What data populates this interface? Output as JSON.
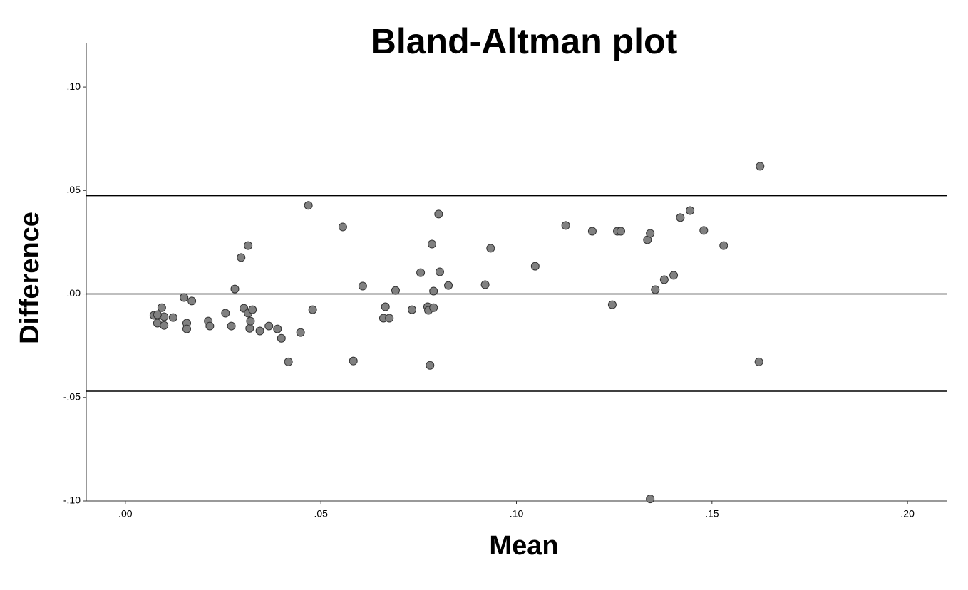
{
  "chart_data": {
    "type": "scatter",
    "title": "Bland-Altman plot",
    "x_label": "Mean",
    "y_label": "Difference",
    "xlim": [
      -0.01,
      0.21
    ],
    "ylim": [
      -0.1,
      0.12
    ],
    "xticks": [
      {
        "value": 0,
        "label": ".00"
      },
      {
        "value": 0.05,
        "label": ".05"
      },
      {
        "value": 0.1,
        "label": ".10"
      },
      {
        "value": 0.15,
        "label": ".15"
      },
      {
        "value": 0.2,
        "label": ".20"
      }
    ],
    "yticks": [
      {
        "value": -0.1,
        "label": "-.10"
      },
      {
        "value": -0.05,
        "label": "-.05"
      },
      {
        "value": 0,
        "label": ".00"
      },
      {
        "value": 0.05,
        "label": ".05"
      },
      {
        "value": 0.1,
        "label": ".10"
      }
    ],
    "hlines": [
      0.0475,
      0,
      -0.047
    ],
    "color": "#808080",
    "x": [
      0.0073,
      0.0082,
      0.0093,
      0.0099,
      0.0099,
      0.0082,
      0.0122,
      0.015,
      0.017,
      0.0157,
      0.0157,
      0.0212,
      0.0216,
      0.0256,
      0.0271,
      0.028,
      0.0296,
      0.0303,
      0.0314,
      0.0314,
      0.0318,
      0.032,
      0.0325,
      0.0344,
      0.0367,
      0.0389,
      0.0399,
      0.0417,
      0.0448,
      0.0468,
      0.0479,
      0.0556,
      0.0583,
      0.0607,
      0.066,
      0.0665,
      0.0675,
      0.0691,
      0.0733,
      0.0755,
      0.0773,
      0.0775,
      0.0779,
      0.0784,
      0.0788,
      0.0788,
      0.0801,
      0.0804,
      0.0826,
      0.092,
      0.0934,
      0.1048,
      0.1126,
      0.1194,
      0.1245,
      0.1258,
      0.1267,
      0.1335,
      0.1342,
      0.1342,
      0.1355,
      0.1378,
      0.1402,
      0.1419,
      0.1444,
      0.1479,
      0.153,
      0.1623,
      0.162
    ],
    "values": [
      -0.0103,
      -0.0141,
      -0.0066,
      -0.011,
      -0.0152,
      -0.01,
      -0.0114,
      -0.0017,
      -0.0034,
      -0.0141,
      -0.0169,
      -0.0131,
      -0.0155,
      -0.0093,
      -0.0155,
      0.0024,
      0.0176,
      -0.0069,
      0.0234,
      -0.0093,
      -0.0166,
      -0.0131,
      -0.0076,
      -0.0179,
      -0.0155,
      -0.0169,
      -0.0214,
      -0.0328,
      -0.0186,
      0.0428,
      -0.0076,
      0.0324,
      -0.0324,
      0.0038,
      -0.0117,
      -0.0062,
      -0.0117,
      0.0017,
      -0.0076,
      0.0103,
      -0.0062,
      -0.0079,
      -0.0345,
      0.0241,
      0.0014,
      -0.0066,
      0.0386,
      0.0107,
      0.0041,
      0.0045,
      0.0221,
      0.0134,
      0.0331,
      0.0303,
      -0.0052,
      0.0303,
      0.0303,
      0.0262,
      -0.099,
      0.0293,
      0.0021,
      0.0069,
      0.009,
      0.0369,
      0.0403,
      0.0307,
      0.0234,
      0.0617,
      -0.0328
    ]
  }
}
